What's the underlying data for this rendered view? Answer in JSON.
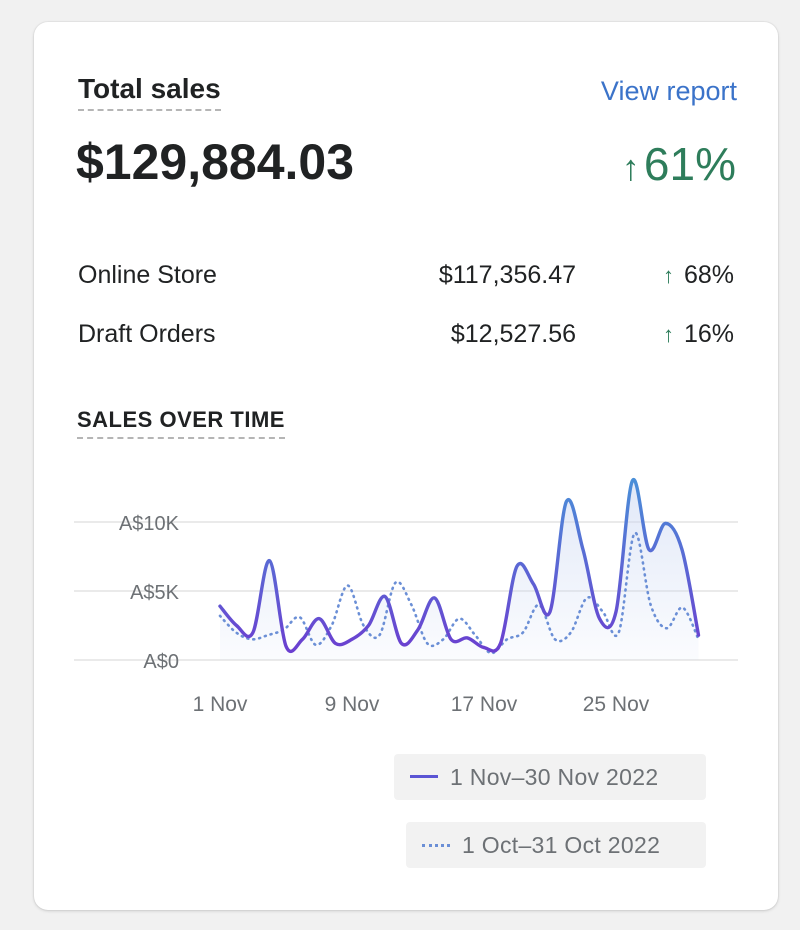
{
  "header": {
    "title": "Total sales",
    "view_report": "View report",
    "total": "$129,884.03",
    "change_arrow": "↑",
    "change": "61%"
  },
  "channels": [
    {
      "label": "Online Store",
      "value": "$117,356.47",
      "arrow": "↑",
      "change": "68%"
    },
    {
      "label": "Draft Orders",
      "value": "$12,527.56",
      "arrow": "↑",
      "change": "16%"
    }
  ],
  "colors": {
    "current": "#5b55d4",
    "previous": "#6b8fd6",
    "positive": "#2e7d5b",
    "link": "#3b73c9"
  },
  "chart_data": {
    "type": "line",
    "title": "SALES OVER TIME",
    "x_tick_labels": [
      "1 Nov",
      "9 Nov",
      "17 Nov",
      "25 Nov"
    ],
    "y_tick_labels": [
      "A$0",
      "A$5K",
      "A$10K"
    ],
    "ylim": [
      0,
      10000
    ],
    "grid": true,
    "legend_position": "bottom-right",
    "series": [
      {
        "name": "1 Nov–30 Nov 2022",
        "style": "solid",
        "x": [
          1,
          2,
          3,
          4,
          5,
          6,
          7,
          8,
          9,
          10,
          11,
          12,
          13,
          14,
          15,
          16,
          17,
          18,
          19,
          20,
          21,
          22,
          23,
          24,
          25,
          26,
          27,
          28,
          29,
          30
        ],
        "values": [
          3900,
          2500,
          2000,
          7200,
          1000,
          1500,
          3000,
          1200,
          1500,
          2500,
          4600,
          1200,
          2200,
          4500,
          1500,
          1600,
          900,
          1200,
          6800,
          5500,
          3500,
          11500,
          8000,
          3000,
          3500,
          13000,
          8000,
          9900,
          8000,
          1800
        ]
      },
      {
        "name": "1 Oct–31 Oct 2022",
        "style": "dotted",
        "x": [
          1,
          2,
          3,
          4,
          5,
          6,
          7,
          8,
          9,
          10,
          11,
          12,
          13,
          14,
          15,
          16,
          17,
          18,
          19,
          20,
          21,
          22,
          23,
          24,
          25,
          26,
          27,
          28,
          29,
          30,
          31
        ],
        "values": [
          3200,
          2000,
          1500,
          1800,
          2200,
          3100,
          1100,
          2500,
          5400,
          2500,
          1800,
          5600,
          4000,
          1200,
          1500,
          3000,
          1800,
          500,
          1500,
          2000,
          4000,
          1500,
          2000,
          4500,
          3500,
          2000,
          9200,
          4000,
          2300,
          3800,
          1500
        ]
      }
    ]
  }
}
